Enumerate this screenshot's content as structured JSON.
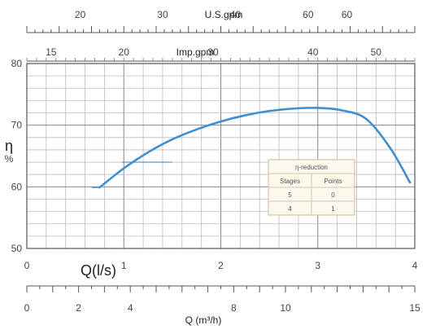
{
  "chart_data": {
    "type": "line",
    "title": "",
    "series": [
      {
        "values": [
          {
            "x": 0.75,
            "y": 59.9
          },
          {
            "x": 1.0,
            "y": 63.0
          },
          {
            "x": 1.25,
            "y": 65.6
          },
          {
            "x": 1.5,
            "y": 67.7
          },
          {
            "x": 1.75,
            "y": 69.3
          },
          {
            "x": 2.0,
            "y": 70.6
          },
          {
            "x": 2.25,
            "y": 71.6
          },
          {
            "x": 2.5,
            "y": 72.3
          },
          {
            "x": 2.75,
            "y": 72.7
          },
          {
            "x": 3.0,
            "y": 72.8
          },
          {
            "x": 3.25,
            "y": 72.4
          },
          {
            "x": 3.5,
            "y": 71.0
          },
          {
            "x": 3.75,
            "y": 66.2
          },
          {
            "x": 3.95,
            "y": 60.7
          }
        ],
        "color": "#3d8fd1"
      }
    ],
    "guide_lines": [
      {
        "x": 0.67,
        "y": 59.9,
        "to_x": 0.75
      },
      {
        "x": 1.5,
        "y": 64.0,
        "from_x": 0.98
      }
    ],
    "axes": {
      "y_left": {
        "label": "η",
        "unit": "%",
        "range": [
          50,
          80
        ],
        "ticks": [
          50,
          60,
          70,
          80
        ]
      },
      "x_bottom": {
        "label": "Q(l/s)",
        "range": [
          0,
          4
        ],
        "ticks": [
          0,
          1,
          2,
          3,
          4
        ]
      },
      "x_bottom2": {
        "label": "Q (m³/h)",
        "range": [
          0,
          15
        ],
        "ticks": [
          0,
          2,
          4,
          8,
          10,
          15
        ],
        "tick_positions": [
          0,
          2,
          4,
          8,
          10,
          15
        ]
      },
      "x_top_imp": {
        "label": "Imp.gpm",
        "ticks": [
          "15",
          "20",
          "30",
          "40",
          "50"
        ],
        "tick_positions_lps": [
          0.25,
          1.0,
          1.92,
          2.95,
          3.6
        ]
      },
      "x_top_us": {
        "label": "U.S.gpm",
        "ticks": [
          "20",
          "30",
          "40",
          "60",
          "60"
        ],
        "tick_positions_lps": [
          0.55,
          1.4,
          2.15,
          2.9,
          3.3
        ]
      }
    },
    "grid": true,
    "legend_position": "right",
    "table": {
      "title": "η-reduction",
      "headers": [
        "Stages",
        "Points"
      ],
      "rows": [
        [
          "5",
          "0"
        ],
        [
          "4",
          "1"
        ]
      ]
    }
  }
}
